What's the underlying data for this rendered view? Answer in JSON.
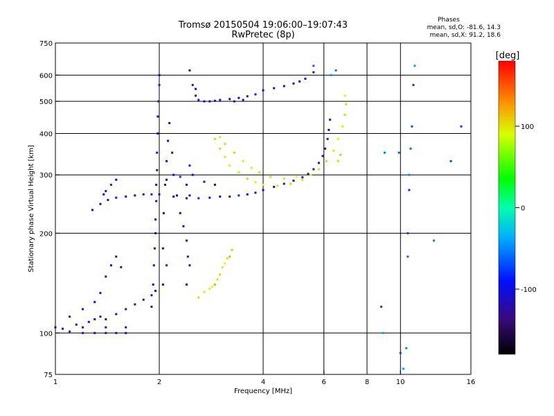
{
  "chart_data": {
    "type": "scatter",
    "title": "Tromsø 20150504 19:06:00–19:07:43",
    "subtitle": "RwPretec (8p)",
    "xlabel": "Frequency [MHz]",
    "ylabel": "Stationary phase Virtual Height [km]",
    "xscale": "log",
    "yscale": "log",
    "xlim": [
      1,
      16
    ],
    "ylim": [
      75,
      750
    ],
    "x_ticks": [
      "1",
      "2",
      "4",
      "6",
      "8",
      "10",
      "16"
    ],
    "x_tick_values": [
      1,
      2,
      4,
      6,
      8,
      10,
      16
    ],
    "y_ticks": [
      "75",
      "100",
      "200",
      "300",
      "400",
      "500",
      "600",
      "750"
    ],
    "y_tick_values": [
      75,
      100,
      200,
      300,
      400,
      500,
      600,
      750
    ],
    "x_grid_values": [
      2,
      4,
      6,
      8,
      10
    ],
    "y_grid_values": [
      100,
      200,
      300,
      400,
      500,
      600
    ],
    "grid": true,
    "stats": {
      "heading": "Phases",
      "line1": "mean, sd,O: -81.6, 14.3",
      "line2": "mean, sd,X:  91.2, 18.6"
    },
    "colorbar": {
      "label": "[deg]",
      "range": [
        -180,
        180
      ],
      "ticks": [
        "100",
        "0",
        "-100"
      ],
      "tick_values": [
        100,
        0,
        -100
      ]
    },
    "point_clusters": [
      {
        "name": "low-height traces",
        "phase_mean": -110,
        "pts": [
          [
            1.0,
            104
          ],
          [
            1.05,
            103
          ],
          [
            1.1,
            101
          ],
          [
            1.15,
            106
          ],
          [
            1.2,
            104
          ],
          [
            1.25,
            108
          ],
          [
            1.3,
            110
          ],
          [
            1.35,
            112
          ],
          [
            1.4,
            110
          ],
          [
            1.5,
            114
          ],
          [
            1.6,
            118
          ],
          [
            1.7,
            122
          ],
          [
            1.8,
            126
          ],
          [
            1.9,
            130
          ],
          [
            1.95,
            134
          ],
          [
            1.1,
            112
          ],
          [
            1.2,
            118
          ],
          [
            1.3,
            124
          ],
          [
            1.35,
            132
          ],
          [
            1.4,
            148
          ],
          [
            1.45,
            160
          ],
          [
            1.5,
            170
          ],
          [
            1.55,
            158
          ],
          [
            1.2,
            100
          ],
          [
            1.3,
            100
          ],
          [
            1.4,
            100
          ],
          [
            1.5,
            100
          ],
          [
            1.6,
            100
          ],
          [
            1.4,
            104
          ],
          [
            1.6,
            104
          ]
        ]
      },
      {
        "name": "lower F trace",
        "phase_mean": -100,
        "pts": [
          [
            1.28,
            235
          ],
          [
            1.35,
            245
          ],
          [
            1.42,
            252
          ],
          [
            1.5,
            256
          ],
          [
            1.6,
            258
          ],
          [
            1.7,
            260
          ],
          [
            1.8,
            262
          ],
          [
            1.9,
            262
          ],
          [
            2.0,
            262
          ],
          [
            2.2,
            258
          ],
          [
            2.4,
            255
          ],
          [
            2.6,
            255
          ],
          [
            2.8,
            256
          ],
          [
            3.0,
            258
          ],
          [
            3.2,
            258
          ],
          [
            3.4,
            260
          ],
          [
            3.6,
            262
          ],
          [
            3.8,
            265
          ],
          [
            4.0,
            270
          ],
          [
            4.3,
            276
          ],
          [
            4.6,
            282
          ],
          [
            4.9,
            288
          ],
          [
            5.2,
            295
          ],
          [
            5.4,
            302
          ],
          [
            5.6,
            312
          ],
          [
            5.8,
            326
          ],
          [
            5.95,
            342
          ],
          [
            6.05,
            360
          ],
          [
            6.15,
            385
          ],
          [
            6.2,
            410
          ],
          [
            6.25,
            440
          ],
          [
            1.4,
            268
          ],
          [
            1.45,
            280
          ],
          [
            1.5,
            290
          ],
          [
            1.38,
            262
          ],
          [
            2.1,
            290
          ],
          [
            2.3,
            296
          ],
          [
            2.5,
            300
          ],
          [
            2.7,
            286
          ],
          [
            2.9,
            280
          ]
        ]
      },
      {
        "name": "vertical column near 2 MHz",
        "phase_mean": -105,
        "pts": [
          [
            1.9,
            120
          ],
          [
            1.92,
            140
          ],
          [
            1.93,
            160
          ],
          [
            1.94,
            180
          ],
          [
            1.95,
            200
          ],
          [
            1.95,
            220
          ],
          [
            1.96,
            250
          ],
          [
            1.96,
            280
          ],
          [
            1.97,
            310
          ],
          [
            1.97,
            350
          ],
          [
            1.98,
            400
          ],
          [
            1.98,
            450
          ],
          [
            1.99,
            500
          ],
          [
            2.0,
            560
          ],
          [
            2.0,
            600
          ],
          [
            2.05,
            180
          ],
          [
            2.06,
            230
          ],
          [
            2.08,
            280
          ],
          [
            2.1,
            330
          ],
          [
            2.12,
            380
          ],
          [
            2.14,
            430
          ],
          [
            2.18,
            350
          ],
          [
            2.2,
            300
          ],
          [
            2.25,
            260
          ],
          [
            2.3,
            230
          ],
          [
            2.35,
            210
          ],
          [
            2.4,
            190
          ],
          [
            2.42,
            170
          ],
          [
            2.45,
            160
          ],
          [
            2.4,
            140
          ],
          [
            2.45,
            320
          ],
          [
            2.45,
            260
          ],
          [
            2.4,
            280
          ],
          [
            2.05,
            140
          ],
          [
            2.1,
            160
          ]
        ]
      },
      {
        "name": "upper F trace",
        "phase_mean": -105,
        "pts": [
          [
            2.45,
            620
          ],
          [
            2.5,
            560
          ],
          [
            2.55,
            520
          ],
          [
            2.6,
            505
          ],
          [
            2.7,
            500
          ],
          [
            2.8,
            500
          ],
          [
            2.9,
            502
          ],
          [
            3.0,
            505
          ],
          [
            3.2,
            508
          ],
          [
            3.4,
            512
          ],
          [
            3.6,
            518
          ],
          [
            3.8,
            525
          ],
          [
            4.0,
            540
          ],
          [
            4.3,
            548
          ],
          [
            4.6,
            556
          ],
          [
            4.9,
            566
          ],
          [
            5.1,
            574
          ],
          [
            5.3,
            585
          ],
          [
            5.6,
            612
          ],
          [
            3.3,
            500
          ],
          [
            3.5,
            505
          ],
          [
            2.55,
            545
          ]
        ]
      },
      {
        "name": "extraordinary trace",
        "phase_mean": 90,
        "pts": [
          [
            2.9,
            385
          ],
          [
            3.0,
            360
          ],
          [
            3.1,
            340
          ],
          [
            3.2,
            320
          ],
          [
            3.4,
            305
          ],
          [
            3.6,
            292
          ],
          [
            3.8,
            285
          ],
          [
            4.0,
            280
          ],
          [
            4.4,
            278
          ],
          [
            4.8,
            282
          ],
          [
            5.2,
            290
          ],
          [
            5.5,
            300
          ],
          [
            5.8,
            312
          ],
          [
            6.1,
            330
          ],
          [
            6.4,
            355
          ],
          [
            6.6,
            385
          ],
          [
            6.8,
            420
          ],
          [
            6.9,
            455
          ],
          [
            6.95,
            490
          ],
          [
            6.9,
            520
          ],
          [
            3.0,
            390
          ],
          [
            3.1,
            372
          ],
          [
            3.3,
            350
          ],
          [
            3.5,
            330
          ],
          [
            3.7,
            315
          ],
          [
            3.9,
            305
          ],
          [
            4.2,
            296
          ],
          [
            4.6,
            292
          ],
          [
            5.0,
            296
          ],
          [
            6.6,
            330
          ],
          [
            6.7,
            345
          ]
        ]
      },
      {
        "name": "lower extraordinary trace",
        "phase_mean": 100,
        "pts": [
          [
            2.6,
            128
          ],
          [
            2.7,
            133
          ],
          [
            2.8,
            136
          ],
          [
            2.9,
            140
          ],
          [
            3.0,
            150
          ],
          [
            3.05,
            158
          ],
          [
            3.1,
            162
          ],
          [
            3.2,
            170
          ],
          [
            3.25,
            178
          ],
          [
            3.15,
            168
          ],
          [
            2.85,
            138
          ],
          [
            2.95,
            145
          ]
        ]
      },
      {
        "name": "scattered high-frequency points",
        "phase_mean": -60,
        "pts": [
          [
            8.8,
            120
          ],
          [
            8.9,
            100
          ],
          [
            9.0,
            350
          ],
          [
            9.9,
            350
          ],
          [
            10.0,
            87
          ],
          [
            10.2,
            78
          ],
          [
            10.4,
            90
          ],
          [
            10.5,
            170
          ],
          [
            10.5,
            200
          ],
          [
            10.6,
            270
          ],
          [
            10.6,
            300
          ],
          [
            10.7,
            360
          ],
          [
            10.8,
            420
          ],
          [
            10.9,
            560
          ],
          [
            11.0,
            640
          ],
          [
            12.5,
            190
          ],
          [
            14.0,
            330
          ],
          [
            15.0,
            420
          ],
          [
            6.3,
            600
          ],
          [
            6.5,
            620
          ],
          [
            5.6,
            640
          ]
        ]
      }
    ]
  }
}
